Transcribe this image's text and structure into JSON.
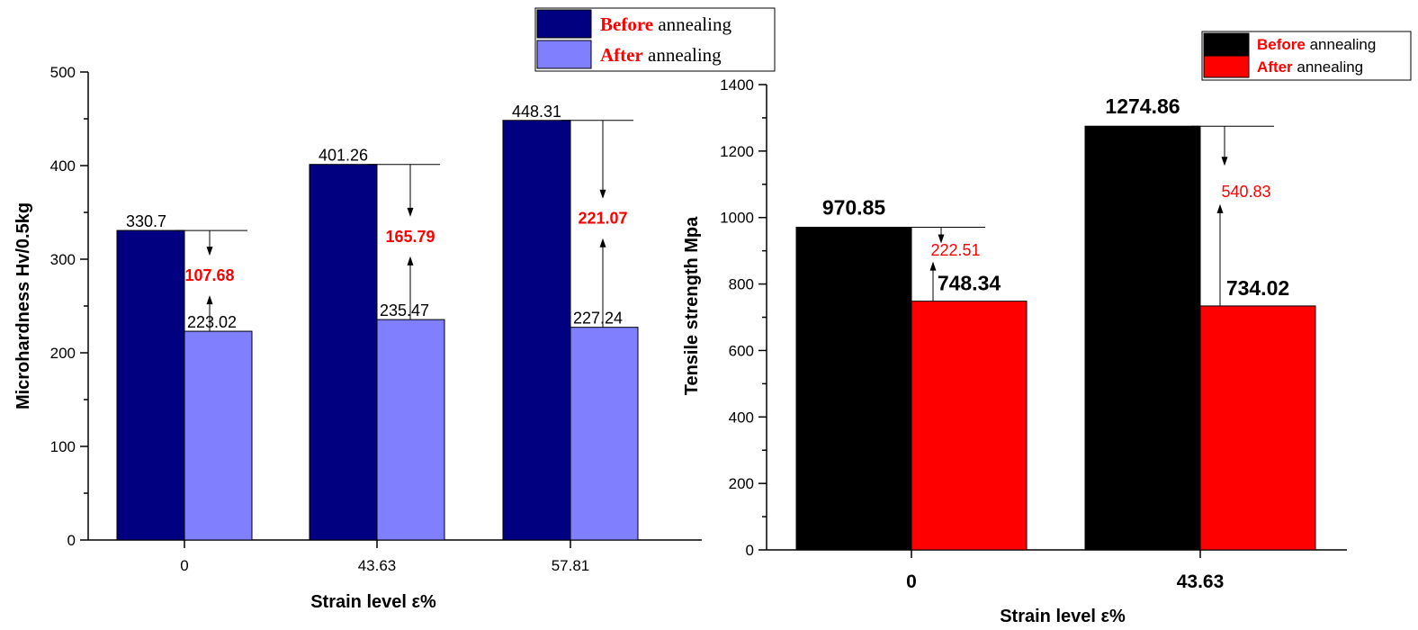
{
  "chart_data": [
    {
      "type": "bar",
      "ylabel": "Microhardness Hv/0.5kg",
      "xlabel": "Strain level ε%",
      "categories": [
        "0",
        "43.63",
        "57.81"
      ],
      "ylim": [
        0,
        500
      ],
      "yticks": [
        "0",
        "100",
        "200",
        "300",
        "400",
        "500"
      ],
      "series": [
        {
          "name": "annealing",
          "legend_prefix": "Before",
          "legend_suffix": " annealing",
          "color": "#000080",
          "values": [
            330.7,
            401.26,
            448.31
          ],
          "labels": [
            "330.7",
            "401.26",
            "448.31"
          ]
        },
        {
          "name": "annealing",
          "legend_prefix": "After",
          "legend_suffix": " annealing",
          "color": "#8080ff",
          "values": [
            223.02,
            235.47,
            227.24
          ],
          "labels": [
            "223.02",
            "235.47",
            "227.24"
          ]
        }
      ],
      "differences": [
        "107.68",
        "165.79",
        "221.07"
      ],
      "legend_placement": "top-right",
      "grid": false
    },
    {
      "type": "bar",
      "ylabel": "Tensile strength Mpa",
      "xlabel": "Strain level ε%",
      "categories": [
        "0",
        "43.63"
      ],
      "ylim": [
        0,
        1400
      ],
      "yticks": [
        "0",
        "200",
        "400",
        "600",
        "800",
        "1000",
        "1200",
        "1400"
      ],
      "series": [
        {
          "name": "annealing",
          "legend_prefix": "Before",
          "legend_suffix": " annealing",
          "color": "#000000",
          "values": [
            970.85,
            1274.86
          ],
          "labels": [
            "970.85",
            "1274.86"
          ]
        },
        {
          "name": "annealing",
          "legend_prefix": "After",
          "legend_suffix": " annealing",
          "color": "#ff0000",
          "values": [
            748.34,
            734.02
          ],
          "labels": [
            "748.34",
            "734.02"
          ]
        }
      ],
      "differences": [
        "222.51",
        "540.83"
      ],
      "legend_placement": "top-right",
      "grid": false
    }
  ],
  "colors": {
    "diff_text": "#ff0000",
    "legend_prefix": "#ff0000"
  }
}
